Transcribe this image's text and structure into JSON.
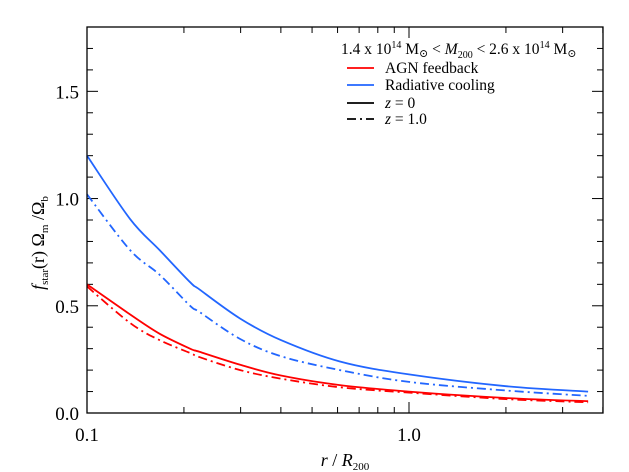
{
  "chart_data": {
    "type": "line",
    "title": "",
    "xlabel": "r / R200",
    "ylabel": "f_star(r) Ω_m / Ω_b",
    "xscale": "log",
    "xlim": [
      0.1,
      4.5
    ],
    "ylim": [
      0.0,
      1.8
    ],
    "xticks": [
      0.1,
      1.0
    ],
    "xtick_labels": [
      "0.1",
      "1.0"
    ],
    "yticks": [
      0.0,
      0.5,
      1.0,
      1.5
    ],
    "ytick_labels": [
      "0.0",
      "0.5",
      "1.0",
      "1.5"
    ],
    "grid": false,
    "legend_position": "upper right",
    "annotation": "1.4 x 10^14 M☉ < M200 < 2.6 x 10^14 M☉",
    "x": [
      0.1,
      0.136,
      0.168,
      0.209,
      0.224,
      0.299,
      0.4,
      0.61,
      1.0,
      2.0,
      3.6
    ],
    "series": [
      {
        "name": "Radiative cooling, z = 0",
        "color": "#2266ff",
        "style": "solid",
        "values": [
          1.2,
          0.905,
          0.76,
          0.61,
          0.575,
          0.44,
          0.34,
          0.24,
          0.18,
          0.125,
          0.1
        ]
      },
      {
        "name": "Radiative cooling, z = 1.0",
        "color": "#2266ff",
        "style": "dashdot",
        "values": [
          1.02,
          0.76,
          0.645,
          0.5,
          0.47,
          0.345,
          0.265,
          0.2,
          0.145,
          0.105,
          0.08
        ]
      },
      {
        "name": "AGN feedback, z = 0",
        "color": "#ff0000",
        "style": "solid",
        "values": [
          0.6,
          0.46,
          0.37,
          0.3,
          0.285,
          0.225,
          0.175,
          0.13,
          0.1,
          0.07,
          0.055
        ]
      },
      {
        "name": "AGN feedback, z = 1.0",
        "color": "#ff0000",
        "style": "dashdot",
        "values": [
          0.59,
          0.42,
          0.34,
          0.28,
          0.26,
          0.2,
          0.16,
          0.12,
          0.095,
          0.065,
          0.05
        ]
      }
    ]
  },
  "legend": {
    "title_parts": {
      "a": "1.4 x 10",
      "a_sup": "14",
      "b": " M",
      "b_sym": "⊙",
      "c": " < ",
      "m": "M",
      "m_sub": "200",
      "d": " < 2.6 x 10",
      "d_sup": "14",
      "e": " M",
      "e_sym": "⊙"
    },
    "items": [
      {
        "label": "AGN feedback",
        "color": "#ff0000",
        "style": "solid"
      },
      {
        "label": "Radiative cooling",
        "color": "#2266ff",
        "style": "solid"
      },
      {
        "label_var": "z",
        "label_rest": " = 0",
        "color": "#000000",
        "style": "solid"
      },
      {
        "label_var": "z",
        "label_rest": " = 1.0",
        "color": "#000000",
        "style": "dashdot"
      }
    ]
  },
  "axes": {
    "x_label_var": "r",
    "x_label_sep": " / ",
    "x_label_R": "R",
    "x_label_sub": "200",
    "y_label_f": "f",
    "y_label_sub1": "star",
    "y_label_mid": "(r) Ω",
    "y_label_sub2": "m",
    "y_label_sep": " /Ω",
    "y_label_sub3": "b"
  }
}
